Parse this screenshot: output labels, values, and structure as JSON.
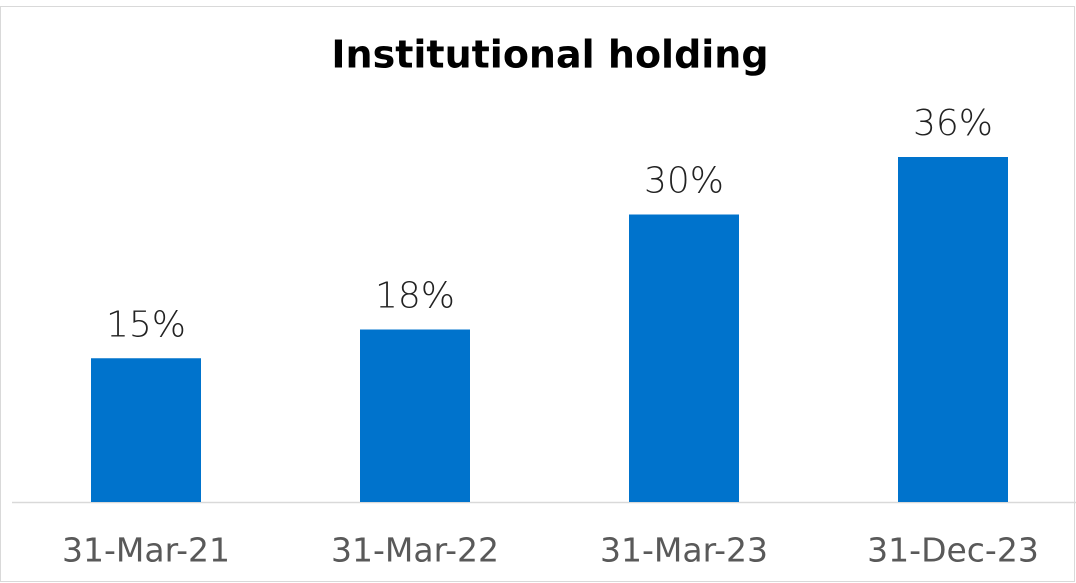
{
  "chart_data": {
    "type": "bar",
    "title": "Institutional holding",
    "categories": [
      "31-Mar-21",
      "31-Mar-22",
      "31-Mar-23",
      "31-Dec-23"
    ],
    "values": [
      15,
      18,
      30,
      36
    ],
    "value_labels": [
      "15%",
      "18%",
      "30%",
      "36%"
    ],
    "color": "#0073cc"
  }
}
